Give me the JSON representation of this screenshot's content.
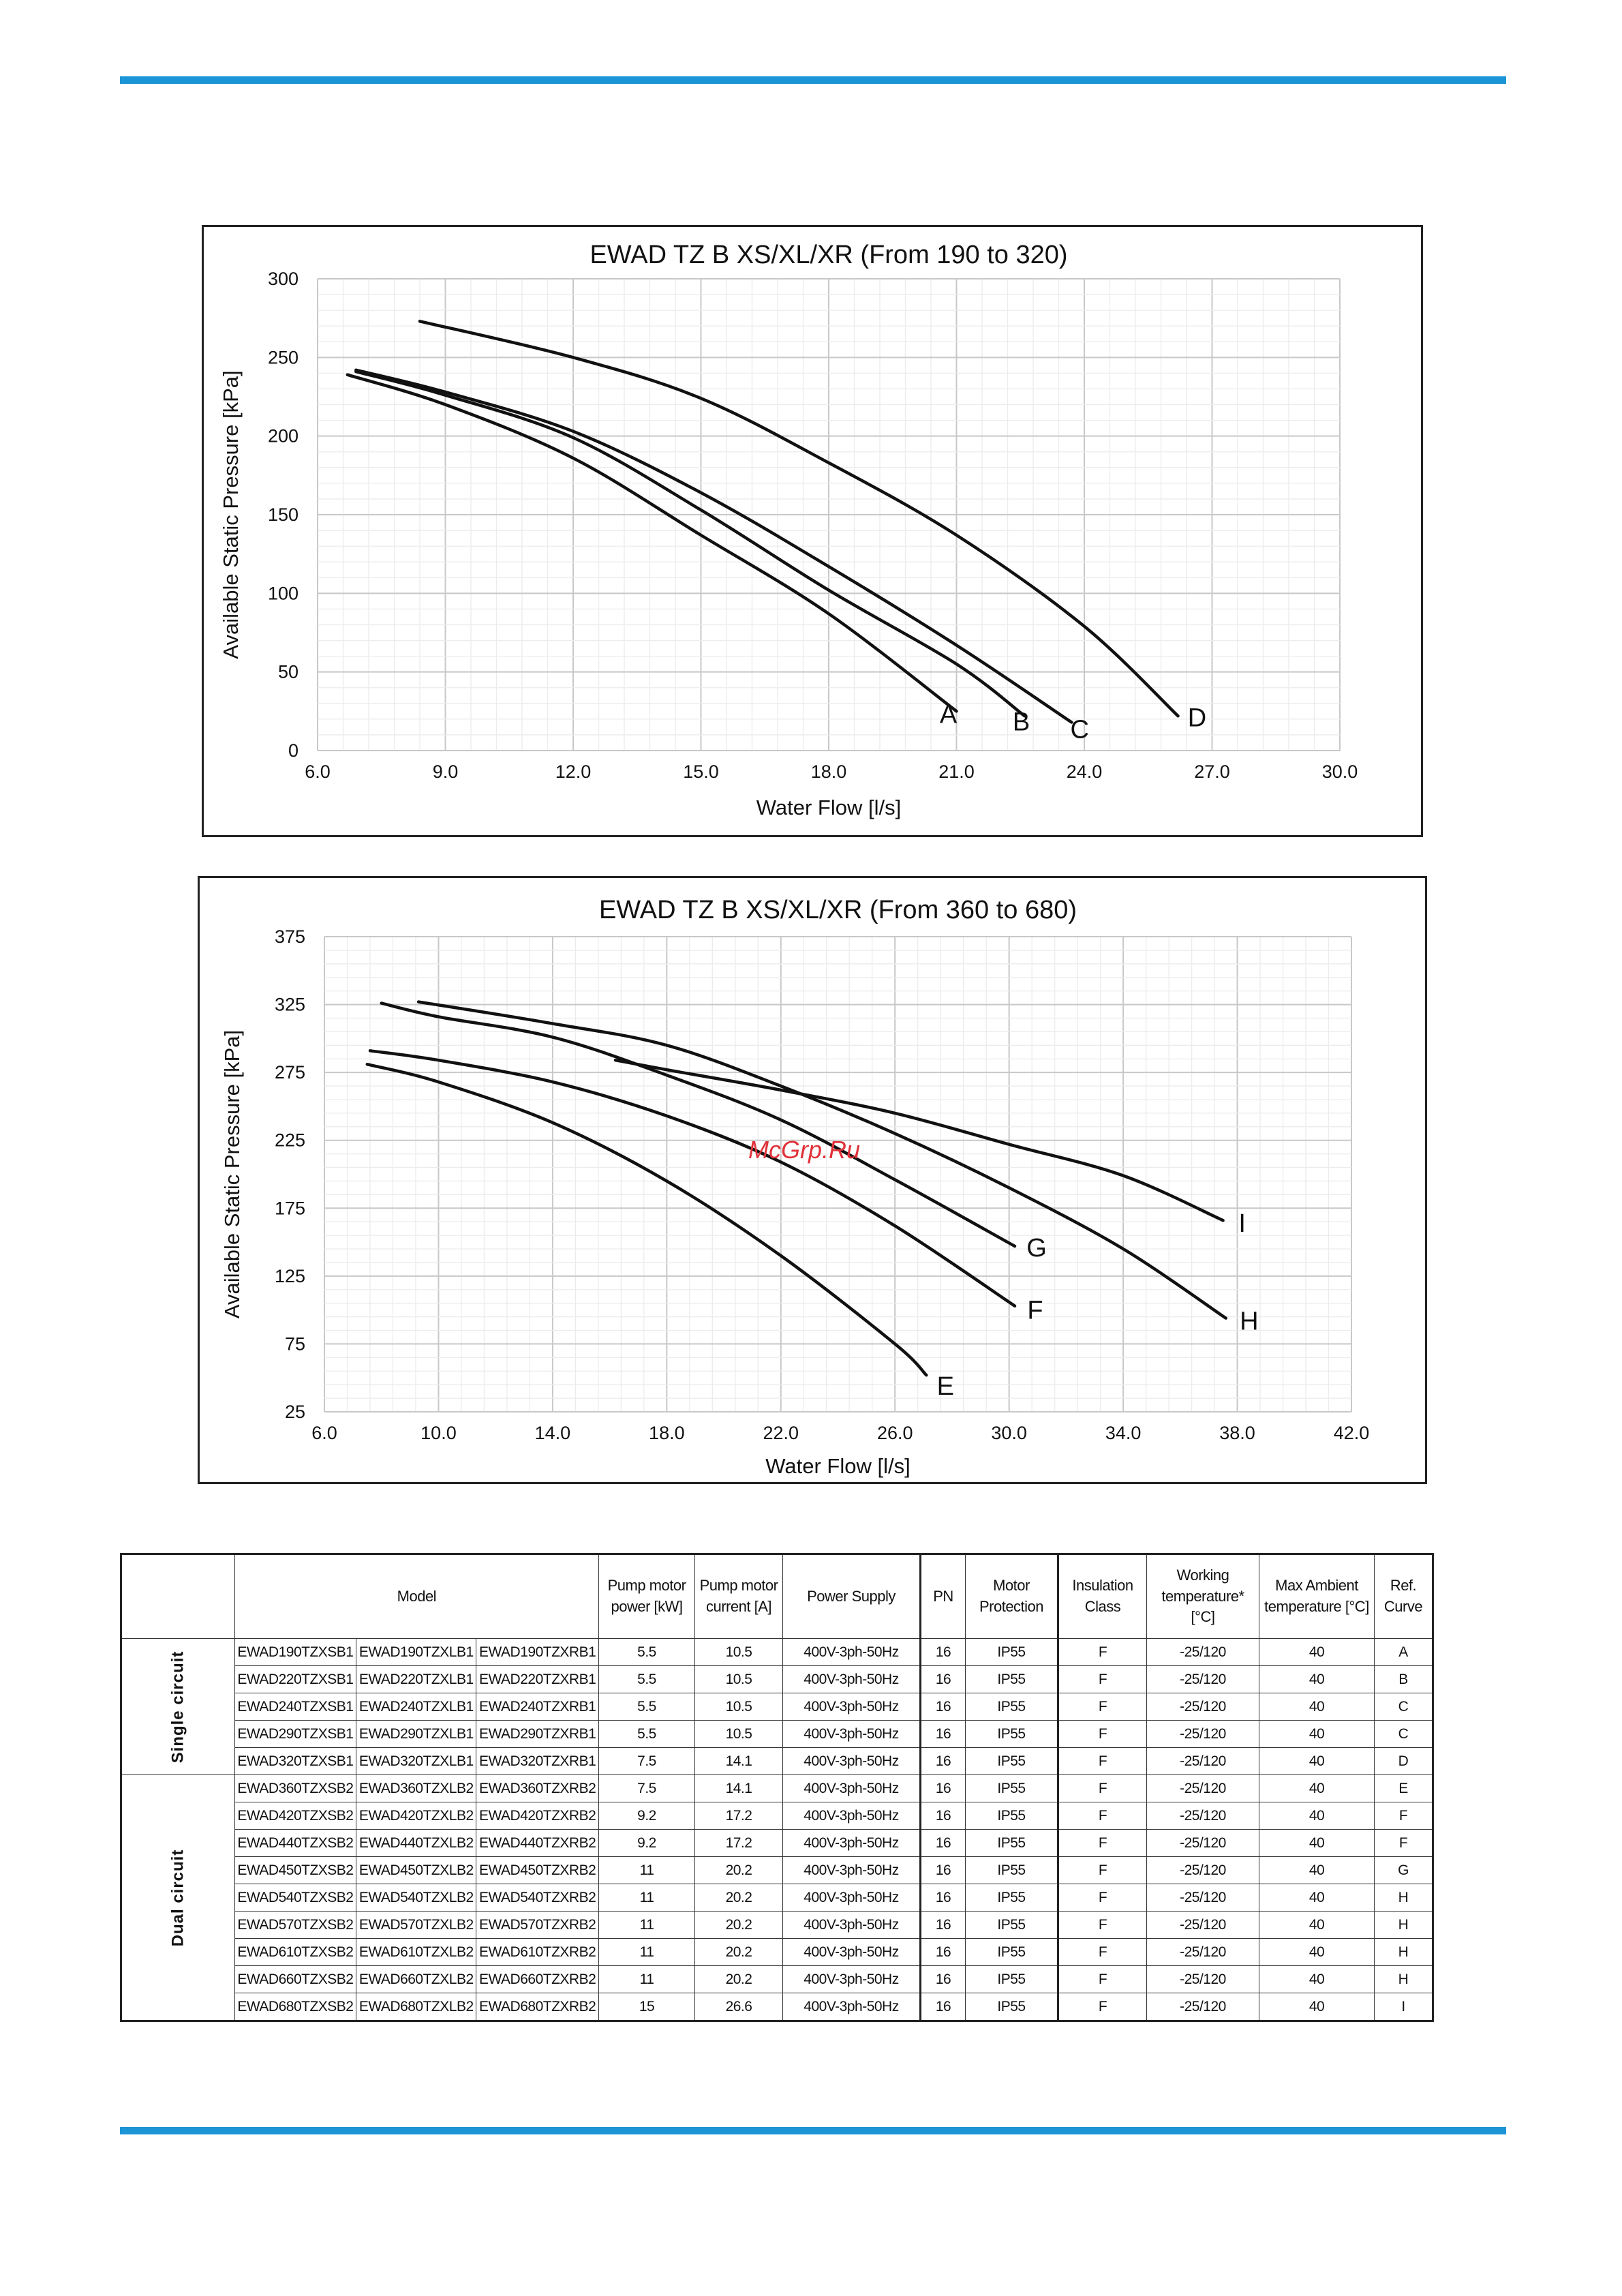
{
  "charts": [
    {
      "type": "line",
      "title": "EWAD TZ B XS/XL/XR (From 190 to 320)",
      "xlabel": "Water Flow [l/s]",
      "ylabel": "Available Static Pressure [kPa]",
      "xlim": [
        6.0,
        30.0
      ],
      "ylim": [
        0,
        300
      ],
      "xticks": [
        "6.0",
        "9.0",
        "12.0",
        "15.0",
        "18.0",
        "21.0",
        "24.0",
        "27.0",
        "30.0"
      ],
      "yticks": [
        "0",
        "50",
        "100",
        "150",
        "200",
        "250",
        "300"
      ],
      "grid": true,
      "series": [
        {
          "name": "A",
          "points": [
            [
              6.7,
              239
            ],
            [
              9.0,
              220
            ],
            [
              12.0,
              186
            ],
            [
              15.0,
              137
            ],
            [
              18.0,
              87
            ],
            [
              21.0,
              25
            ]
          ]
        },
        {
          "name": "B",
          "points": [
            [
              6.9,
              241
            ],
            [
              9.0,
              226
            ],
            [
              12.0,
              199
            ],
            [
              15.0,
              153
            ],
            [
              18.0,
              102
            ],
            [
              21.0,
              55
            ],
            [
              22.6,
              22
            ]
          ]
        },
        {
          "name": "C",
          "points": [
            [
              6.9,
              242
            ],
            [
              9.0,
              228
            ],
            [
              12.0,
              203
            ],
            [
              15.0,
              164
            ],
            [
              18.0,
              117
            ],
            [
              21.0,
              67
            ],
            [
              23.7,
              18
            ]
          ]
        },
        {
          "name": "D",
          "points": [
            [
              8.4,
              273
            ],
            [
              12.0,
              250
            ],
            [
              15.0,
              224
            ],
            [
              18.0,
              183
            ],
            [
              21.0,
              137
            ],
            [
              24.0,
              79
            ],
            [
              26.2,
              22
            ]
          ]
        }
      ]
    },
    {
      "type": "line",
      "title": "EWAD TZ B  XS/XL/XR (From 360 to 680)",
      "xlabel": "Water Flow [l/s]",
      "ylabel": "Available Static Pressure [kPa]",
      "xlim": [
        6.0,
        42.0
      ],
      "ylim": [
        25,
        375
      ],
      "xticks": [
        "6.0",
        "10.0",
        "14.0",
        "18.0",
        "22.0",
        "26.0",
        "30.0",
        "34.0",
        "38.0",
        "42.0"
      ],
      "yticks": [
        "25",
        "75",
        "125",
        "175",
        "225",
        "275",
        "325",
        "375"
      ],
      "grid": true,
      "series": [
        {
          "name": "E",
          "points": [
            [
              7.5,
              281
            ],
            [
              10.0,
              268
            ],
            [
              14.0,
              238
            ],
            [
              18.0,
              195
            ],
            [
              22.0,
              140
            ],
            [
              26.0,
              75
            ],
            [
              27.1,
              52
            ]
          ]
        },
        {
          "name": "F",
          "points": [
            [
              7.6,
              291
            ],
            [
              10.0,
              284
            ],
            [
              14.0,
              268
            ],
            [
              18.0,
              243
            ],
            [
              22.0,
              209
            ],
            [
              26.0,
              162
            ],
            [
              30.2,
              103
            ]
          ]
        },
        {
          "name": "G",
          "points": [
            [
              8.0,
              326
            ],
            [
              10.0,
              316
            ],
            [
              14.0,
              301
            ],
            [
              18.0,
              273
            ],
            [
              22.0,
              240
            ],
            [
              26.0,
              196
            ],
            [
              30.2,
              147
            ]
          ]
        },
        {
          "name": "H",
          "points": [
            [
              9.3,
              327
            ],
            [
              14.0,
              311
            ],
            [
              18.0,
              295
            ],
            [
              22.0,
              265
            ],
            [
              26.0,
              230
            ],
            [
              30.0,
              190
            ],
            [
              34.0,
              145
            ],
            [
              37.6,
              94
            ]
          ]
        },
        {
          "name": "I",
          "points": [
            [
              16.2,
              284
            ],
            [
              18.0,
              277
            ],
            [
              22.0,
              262
            ],
            [
              26.0,
              245
            ],
            [
              30.0,
              222
            ],
            [
              34.0,
              199
            ],
            [
              37.5,
              166
            ]
          ]
        }
      ]
    }
  ],
  "watermark": "McGrp.Ru",
  "table": {
    "headers": {
      "model": "Model",
      "pump_power": "Pump motor power [kW]",
      "pump_current": "Pump motor current [A]",
      "power_supply": "Power Supply",
      "pn": "PN",
      "motor_protection": "Motor Protection",
      "insulation": "Insulation Class",
      "working_temp": "Working temperature* [°C]",
      "max_ambient": "Max Ambient temperature [°C]",
      "ref_curve": "Ref. Curve"
    },
    "groups": {
      "single": "Single circuit",
      "dual": "Dual   circuit"
    },
    "rows": [
      {
        "xs": "EWAD190TZXSB1",
        "xl": "EWAD190TZXLB1",
        "xr": "EWAD190TZXRB1",
        "kw": "5.5",
        "a": "10.5",
        "ps": "400V-3ph-50Hz",
        "pn": "16",
        "mp": "IP55",
        "ins": "F",
        "wt": "-25/120",
        "amb": "40",
        "ref": "A"
      },
      {
        "xs": "EWAD220TZXSB1",
        "xl": "EWAD220TZXLB1",
        "xr": "EWAD220TZXRB1",
        "kw": "5.5",
        "a": "10.5",
        "ps": "400V-3ph-50Hz",
        "pn": "16",
        "mp": "IP55",
        "ins": "F",
        "wt": "-25/120",
        "amb": "40",
        "ref": "B"
      },
      {
        "xs": "EWAD240TZXSB1",
        "xl": "EWAD240TZXLB1",
        "xr": "EWAD240TZXRB1",
        "kw": "5.5",
        "a": "10.5",
        "ps": "400V-3ph-50Hz",
        "pn": "16",
        "mp": "IP55",
        "ins": "F",
        "wt": "-25/120",
        "amb": "40",
        "ref": "C"
      },
      {
        "xs": "EWAD290TZXSB1",
        "xl": "EWAD290TZXLB1",
        "xr": "EWAD290TZXRB1",
        "kw": "5.5",
        "a": "10.5",
        "ps": "400V-3ph-50Hz",
        "pn": "16",
        "mp": "IP55",
        "ins": "F",
        "wt": "-25/120",
        "amb": "40",
        "ref": "C"
      },
      {
        "xs": "EWAD320TZXSB1",
        "xl": "EWAD320TZXLB1",
        "xr": "EWAD320TZXRB1",
        "kw": "7.5",
        "a": "14.1",
        "ps": "400V-3ph-50Hz",
        "pn": "16",
        "mp": "IP55",
        "ins": "F",
        "wt": "-25/120",
        "amb": "40",
        "ref": "D"
      },
      {
        "xs": "EWAD360TZXSB2",
        "xl": "EWAD360TZXLB2",
        "xr": "EWAD360TZXRB2",
        "kw": "7.5",
        "a": "14.1",
        "ps": "400V-3ph-50Hz",
        "pn": "16",
        "mp": "IP55",
        "ins": "F",
        "wt": "-25/120",
        "amb": "40",
        "ref": "E"
      },
      {
        "xs": "EWAD420TZXSB2",
        "xl": "EWAD420TZXLB2",
        "xr": "EWAD420TZXRB2",
        "kw": "9.2",
        "a": "17.2",
        "ps": "400V-3ph-50Hz",
        "pn": "16",
        "mp": "IP55",
        "ins": "F",
        "wt": "-25/120",
        "amb": "40",
        "ref": "F"
      },
      {
        "xs": "EWAD440TZXSB2",
        "xl": "EWAD440TZXLB2",
        "xr": "EWAD440TZXRB2",
        "kw": "9.2",
        "a": "17.2",
        "ps": "400V-3ph-50Hz",
        "pn": "16",
        "mp": "IP55",
        "ins": "F",
        "wt": "-25/120",
        "amb": "40",
        "ref": "F"
      },
      {
        "xs": "EWAD450TZXSB2",
        "xl": "EWAD450TZXLB2",
        "xr": "EWAD450TZXRB2",
        "kw": "11",
        "a": "20.2",
        "ps": "400V-3ph-50Hz",
        "pn": "16",
        "mp": "IP55",
        "ins": "F",
        "wt": "-25/120",
        "amb": "40",
        "ref": "G"
      },
      {
        "xs": "EWAD540TZXSB2",
        "xl": "EWAD540TZXLB2",
        "xr": "EWAD540TZXRB2",
        "kw": "11",
        "a": "20.2",
        "ps": "400V-3ph-50Hz",
        "pn": "16",
        "mp": "IP55",
        "ins": "F",
        "wt": "-25/120",
        "amb": "40",
        "ref": "H"
      },
      {
        "xs": "EWAD570TZXSB2",
        "xl": "EWAD570TZXLB2",
        "xr": "EWAD570TZXRB2",
        "kw": "11",
        "a": "20.2",
        "ps": "400V-3ph-50Hz",
        "pn": "16",
        "mp": "IP55",
        "ins": "F",
        "wt": "-25/120",
        "amb": "40",
        "ref": "H"
      },
      {
        "xs": "EWAD610TZXSB2",
        "xl": "EWAD610TZXLB2",
        "xr": "EWAD610TZXRB2",
        "kw": "11",
        "a": "20.2",
        "ps": "400V-3ph-50Hz",
        "pn": "16",
        "mp": "IP55",
        "ins": "F",
        "wt": "-25/120",
        "amb": "40",
        "ref": "H"
      },
      {
        "xs": "EWAD660TZXSB2",
        "xl": "EWAD660TZXLB2",
        "xr": "EWAD660TZXRB2",
        "kw": "11",
        "a": "20.2",
        "ps": "400V-3ph-50Hz",
        "pn": "16",
        "mp": "IP55",
        "ins": "F",
        "wt": "-25/120",
        "amb": "40",
        "ref": "H"
      },
      {
        "xs": "EWAD680TZXSB2",
        "xl": "EWAD680TZXLB2",
        "xr": "EWAD680TZXRB2",
        "kw": "15",
        "a": "26.6",
        "ps": "400V-3ph-50Hz",
        "pn": "16",
        "mp": "IP55",
        "ins": "F",
        "wt": "-25/120",
        "amb": "40",
        "ref": "I"
      }
    ]
  },
  "colors": {
    "rule": "#1b95d6",
    "watermark": "#e0323a",
    "curve": "#111111",
    "grid": "#d9d9d9"
  }
}
